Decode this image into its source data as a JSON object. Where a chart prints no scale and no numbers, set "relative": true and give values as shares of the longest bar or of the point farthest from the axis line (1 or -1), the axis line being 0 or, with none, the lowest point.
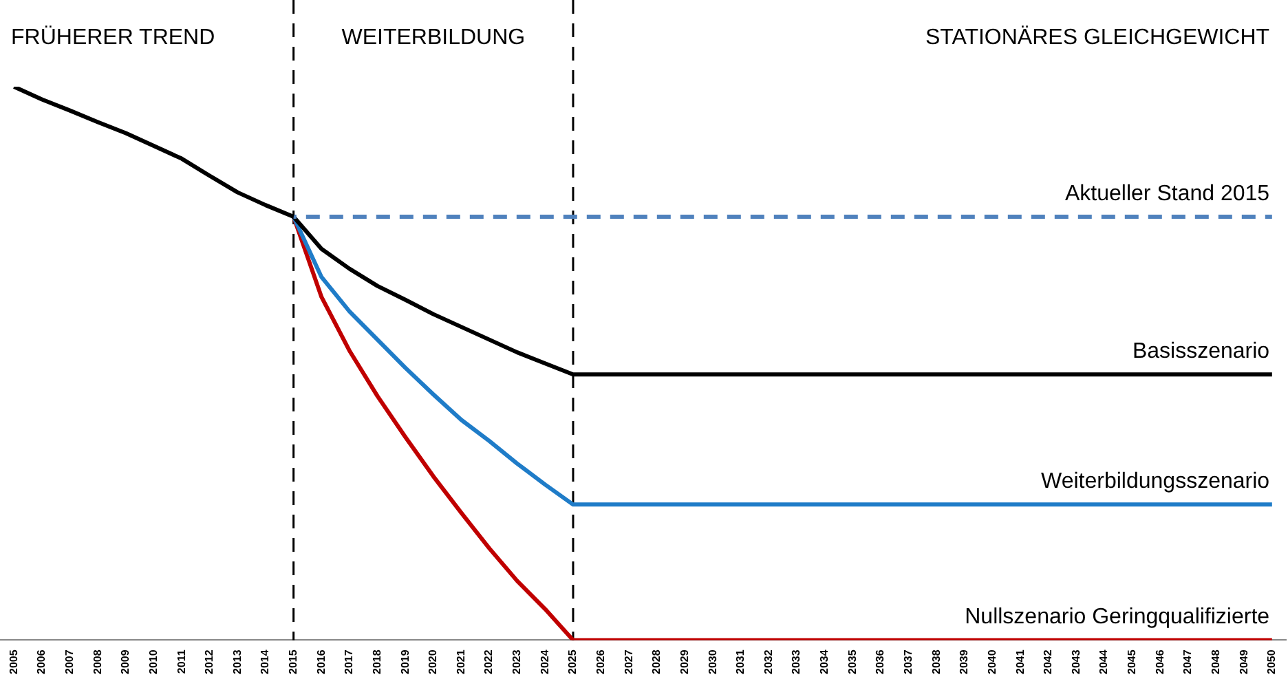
{
  "chart_data": {
    "type": "line",
    "relative": true,
    "xlim": [
      2004.5,
      2050.5
    ],
    "xticks": [
      2005,
      2006,
      2007,
      2008,
      2009,
      2010,
      2011,
      2012,
      2013,
      2014,
      2015,
      2016,
      2017,
      2018,
      2019,
      2020,
      2021,
      2022,
      2023,
      2024,
      2025,
      2026,
      2027,
      2028,
      2029,
      2030,
      2031,
      2032,
      2033,
      2034,
      2035,
      2036,
      2037,
      2038,
      2039,
      2040,
      2041,
      2042,
      2043,
      2044,
      2045,
      2046,
      2047,
      2048,
      2049,
      2050
    ],
    "grid": false,
    "legend": false,
    "marker": "none",
    "series": [
      {
        "color": "#000000",
        "x": [
          2005,
          2006,
          2007,
          2008,
          2009,
          2010,
          2011,
          2012,
          2013,
          2014,
          2015
        ],
        "values": [
          1.0,
          0.977,
          0.957,
          0.936,
          0.916,
          0.893,
          0.87,
          0.839,
          0.809,
          0.786,
          0.765
        ]
      },
      {
        "name": "Aktueller Stand 2015",
        "color": "#4f81bd",
        "line_style": "dashed",
        "x": [
          2015,
          2050
        ],
        "values": [
          0.765,
          0.765
        ]
      },
      {
        "name": "Basisszenario",
        "color": "#000000",
        "x": [
          2015,
          2016,
          2017,
          2018,
          2019,
          2020,
          2021,
          2022,
          2023,
          2024,
          2025,
          2050
        ],
        "values": [
          0.765,
          0.707,
          0.671,
          0.64,
          0.615,
          0.589,
          0.566,
          0.543,
          0.52,
          0.5,
          0.48,
          0.48
        ]
      },
      {
        "name": "Weiterbildungsszenario",
        "color": "#1f7cc8",
        "x": [
          2015,
          2016,
          2017,
          2018,
          2019,
          2020,
          2021,
          2022,
          2023,
          2024,
          2025,
          2050
        ],
        "values": [
          0.765,
          0.656,
          0.594,
          0.543,
          0.492,
          0.444,
          0.398,
          0.36,
          0.319,
          0.281,
          0.245,
          0.245
        ]
      },
      {
        "name": "Nullszenario Geringqualifizierte",
        "color": "#c00000",
        "x": [
          2015,
          2016,
          2017,
          2018,
          2019,
          2020,
          2021,
          2022,
          2023,
          2024,
          2025,
          2050
        ],
        "values": [
          0.765,
          0.62,
          0.523,
          0.441,
          0.367,
          0.296,
          0.23,
          0.166,
          0.107,
          0.056,
          0,
          0
        ]
      }
    ],
    "ref_lines": [
      {
        "axis": "x",
        "value": 2015,
        "color": "#000000",
        "line_style": "dashed"
      },
      {
        "axis": "x",
        "value": 2025,
        "color": "#000000",
        "line_style": "dashed"
      }
    ],
    "annotations": [
      "FRÜHERER TREND",
      "WEITERBILDUNG",
      "STATIONÄRES GLEICHGEWICHT"
    ]
  }
}
